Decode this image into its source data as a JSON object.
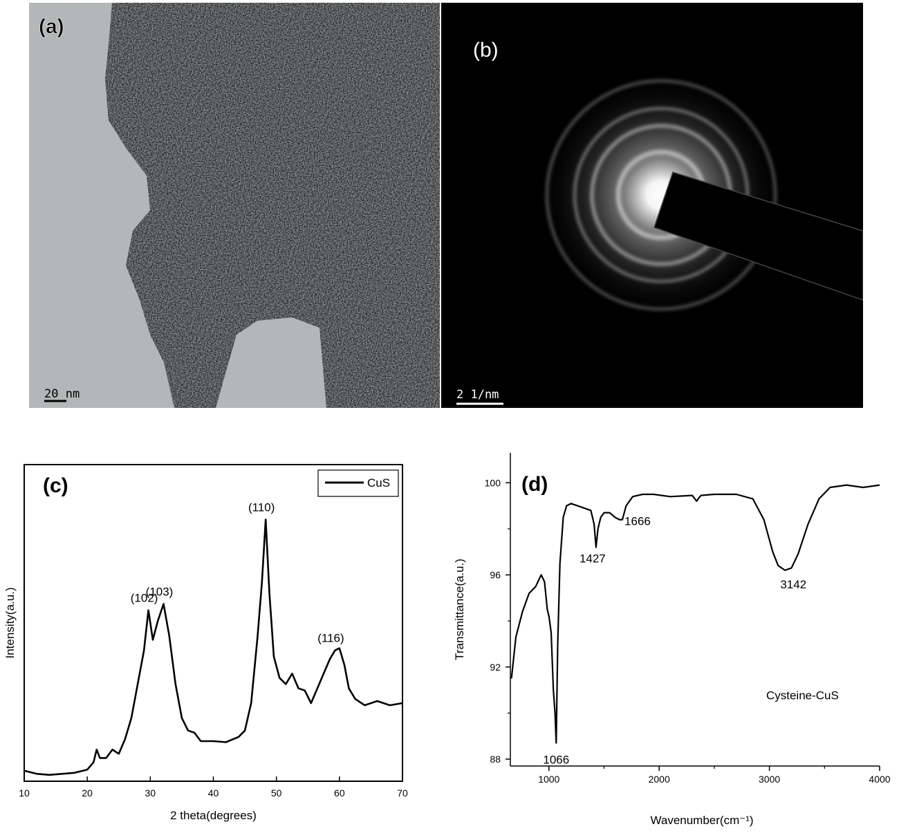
{
  "panels": {
    "a": {
      "label": "(a)",
      "scalebar": "20 nm"
    },
    "b": {
      "label": "(b)",
      "scalebar": "2 1/nm"
    }
  },
  "chart_data": [
    {
      "id": "c",
      "type": "line",
      "panel_label": "(c)",
      "xlabel": "2 theta(degrees)",
      "ylabel": "Intensity(a.u.)",
      "xlim": [
        10,
        70
      ],
      "x_ticks": [
        10,
        20,
        30,
        40,
        50,
        60,
        70
      ],
      "x_tick_labels": [
        "10",
        "20",
        "30",
        "40",
        "50",
        "60",
        "70"
      ],
      "y_ticks_shown": false,
      "legend": {
        "placement": "top-right",
        "entries": [
          "CuS"
        ]
      },
      "series": [
        {
          "name": "CuS",
          "x": [
            10,
            12,
            14,
            16,
            18,
            20,
            21,
            21.5,
            22,
            23,
            24,
            24.5,
            25,
            26,
            27,
            28,
            29,
            29.7,
            30.4,
            31.2,
            32.1,
            33,
            34,
            35,
            36,
            37,
            38,
            40,
            42,
            44,
            45,
            46,
            47,
            47.7,
            48.3,
            48.9,
            49.6,
            50.5,
            51.5,
            52.5,
            53.5,
            54.5,
            55.5,
            56.5,
            57.5,
            58.5,
            59.3,
            60,
            60.8,
            61.5,
            62.5,
            64,
            66,
            68,
            70
          ],
          "y": [
            5,
            3.5,
            3,
            3.5,
            4,
            5.5,
            9,
            15,
            11,
            11,
            15,
            14,
            13,
            20,
            30,
            46,
            62,
            81,
            67,
            76,
            84,
            69,
            46,
            30,
            24,
            23,
            19,
            19,
            18.5,
            21,
            24,
            37,
            68,
            94,
            124,
            89,
            59,
            49,
            46,
            51,
            44,
            43,
            37,
            44,
            51,
            58,
            62,
            63,
            55,
            44,
            39,
            36,
            38,
            36,
            37
          ]
        }
      ],
      "annotations": [
        {
          "text": "(102)",
          "x": 29.7,
          "y": 81
        },
        {
          "text": "(103)",
          "x": 32.1,
          "y": 84
        },
        {
          "text": "(110)",
          "x": 48.3,
          "y": 124
        },
        {
          "text": "(116)",
          "x": 59.3,
          "y": 62
        }
      ]
    },
    {
      "id": "d",
      "type": "line",
      "panel_label": "(d)",
      "xlabel": "Wavenumber(cm⁻¹)",
      "ylabel": "Transmittance(a.u.)",
      "xlim": [
        650,
        4000
      ],
      "ylim": [
        87.7,
        101.3
      ],
      "x_ticks": [
        1000,
        2000,
        3000,
        4000
      ],
      "y_ticks": [
        88,
        92,
        96,
        100
      ],
      "series": [
        {
          "name": "Cysteine-CuS",
          "x": [
            660,
            700,
            760,
            820,
            880,
            930,
            960,
            985,
            1000,
            1020,
            1040,
            1055,
            1066,
            1080,
            1100,
            1130,
            1160,
            1200,
            1260,
            1320,
            1380,
            1410,
            1427,
            1445,
            1470,
            1500,
            1550,
            1600,
            1640,
            1666,
            1700,
            1760,
            1850,
            1950,
            2100,
            2300,
            2340,
            2360,
            2380,
            2500,
            2700,
            2850,
            2950,
            3030,
            3080,
            3142,
            3200,
            3260,
            3350,
            3450,
            3550,
            3700,
            3850,
            4000
          ],
          "y": [
            91.5,
            93.3,
            94.4,
            95.2,
            95.5,
            96.0,
            95.7,
            94.5,
            94.2,
            93.5,
            91.0,
            90.0,
            88.7,
            93.0,
            96.5,
            98.5,
            99.0,
            99.1,
            99.0,
            98.9,
            98.8,
            98.2,
            97.2,
            98.0,
            98.5,
            98.7,
            98.7,
            98.5,
            98.4,
            98.4,
            99.0,
            99.4,
            99.5,
            99.5,
            99.4,
            99.45,
            99.2,
            99.35,
            99.45,
            99.5,
            99.5,
            99.3,
            98.4,
            97.0,
            96.4,
            96.2,
            96.3,
            96.9,
            98.2,
            99.3,
            99.8,
            99.9,
            99.8,
            99.9
          ]
        }
      ],
      "annotations": [
        {
          "text": "1066",
          "x": 1066,
          "y": 88.7
        },
        {
          "text": "1427",
          "x": 1427,
          "y": 97.2
        },
        {
          "text": "1666",
          "x": 1666,
          "y": 98.4
        },
        {
          "text": "3142",
          "x": 3142,
          "y": 96.2
        },
        {
          "text": "Cysteine-CuS",
          "x": 3300,
          "y": 90.6
        }
      ]
    }
  ]
}
